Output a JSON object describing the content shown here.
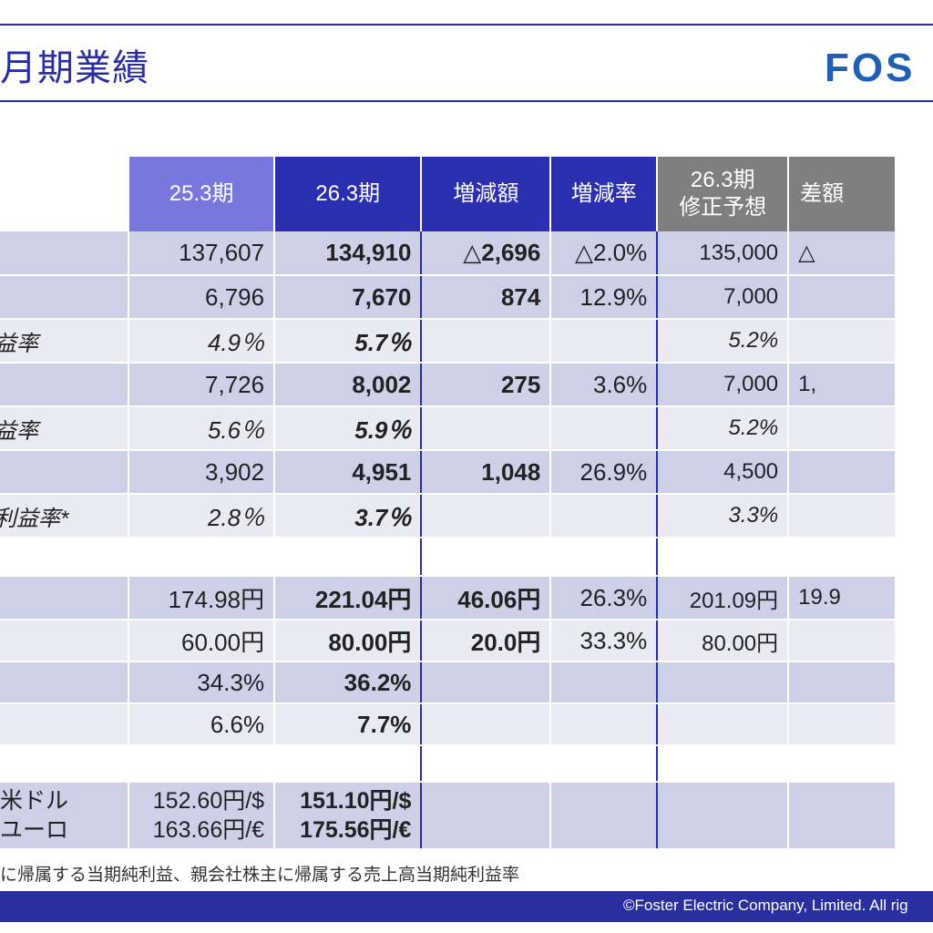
{
  "header": {
    "title": "月期業績",
    "logo": "FOS"
  },
  "columns": [
    "25.3期",
    "26.3期",
    "増減額",
    "増減率",
    "26.3期\n修正予想",
    "差額"
  ],
  "rows": [
    {
      "label": "",
      "style": "dark",
      "v253": "137,607",
      "v263": "134,910",
      "diff": "△2,696",
      "rate": "△2.0%",
      "fc": "135,000",
      "gap": "△"
    },
    {
      "label": "",
      "style": "dark",
      "v253": "6,796",
      "v263": "7,670",
      "diff": "874",
      "rate": "12.9%",
      "fc": "7,000",
      "gap": ""
    },
    {
      "label": "利益率",
      "style": "light",
      "italic": true,
      "v253": "4.9％",
      "v263": "5.7％",
      "diff": "",
      "rate": "",
      "fc": "5.2%",
      "gap": ""
    },
    {
      "label": "",
      "style": "dark",
      "v253": "7,726",
      "v263": "8,002",
      "diff": "275",
      "rate": "3.6%",
      "fc": "7,000",
      "gap": "1,"
    },
    {
      "label": "利益率",
      "style": "light",
      "italic": true,
      "v253": "5.6％",
      "v263": "5.9％",
      "diff": "",
      "rate": "",
      "fc": "5.2%",
      "gap": ""
    },
    {
      "label": "",
      "style": "dark",
      "v253": "3,902",
      "v263": "4,951",
      "diff": "1,048",
      "rate": "26.9%",
      "fc": "4,500",
      "gap": ""
    },
    {
      "label": "純利益率*",
      "style": "light",
      "italic": true,
      "v253": "2.8％",
      "v263": "3.7％",
      "diff": "",
      "rate": "",
      "fc": "3.3%",
      "gap": ""
    },
    {
      "label": "",
      "style": "blank",
      "v253": "",
      "v263": "",
      "diff": "",
      "rate": "",
      "fc": "",
      "gap": ""
    },
    {
      "label": "",
      "style": "dark",
      "v253": "174.98円",
      "v263": "221.04円",
      "diff": "46.06円",
      "rate": "26.3%",
      "fc": "201.09円",
      "gap": "19.9"
    },
    {
      "label": "",
      "style": "light",
      "v253": "60.00円",
      "v263": "80.00円",
      "diff": "20.0円",
      "rate": "33.3%",
      "fc": "80.00円",
      "gap": ""
    },
    {
      "label": "",
      "style": "dark",
      "v253": "34.3%",
      "v263": "36.2%",
      "diff": "",
      "rate": "",
      "fc": "",
      "gap": ""
    },
    {
      "label": "",
      "style": "light",
      "v253": "6.6%",
      "v263": "7.7%",
      "diff": "",
      "rate": "",
      "fc": "",
      "gap": ""
    },
    {
      "label": "",
      "style": "blank",
      "v253": "",
      "v263": "",
      "diff": "",
      "rate": "",
      "fc": "",
      "gap": ""
    }
  ],
  "fx": {
    "label_usd": "米ドル",
    "label_eur": "ユーロ",
    "v253_usd": "152.60円/$",
    "v253_eur": "163.66円/€",
    "v263_usd": "151.10円/$",
    "v263_eur": "175.56円/€"
  },
  "note": "に帰属する当期純利益、親会社株主に帰属する売上高当期純利益率",
  "footer": "©Foster Electric Company, Limited. All rig"
}
